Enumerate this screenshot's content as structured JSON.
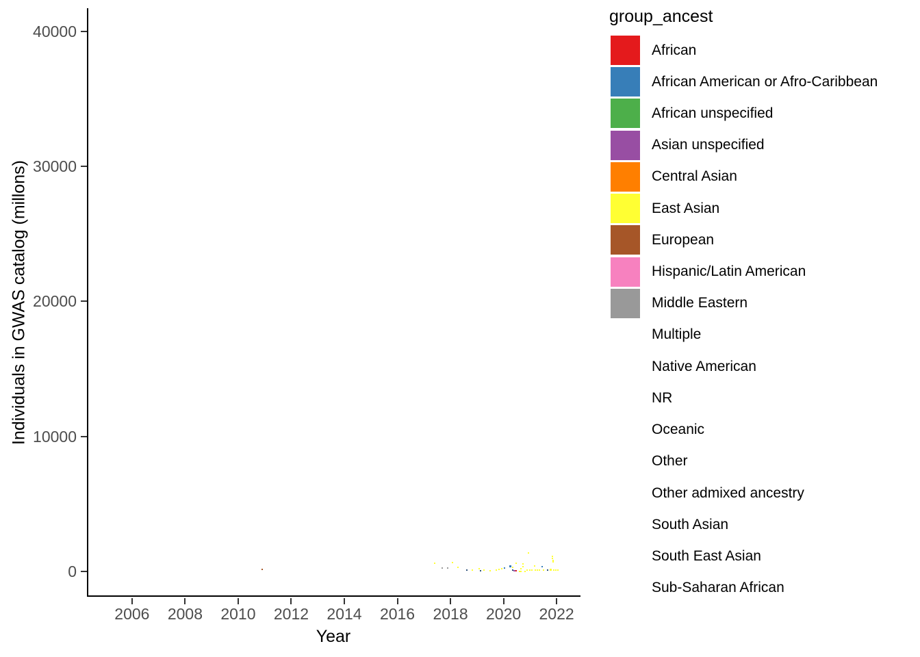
{
  "figure": {
    "background": "#FFFFFF",
    "axis_line_color": "#000000",
    "tick_mark_color": "#333333",
    "tick_text_color": "#4D4D4D",
    "title_text_color": "#000000"
  },
  "chart_data": {
    "type": "scatter",
    "title": "",
    "xlabel": "Year",
    "ylabel": "Individuals in GWAS catalog (millons)",
    "x_ticks": [
      2006,
      2008,
      2010,
      2012,
      2014,
      2016,
      2018,
      2020,
      2022
    ],
    "y_ticks": [
      0,
      10000,
      20000,
      30000,
      40000
    ],
    "xlim": [
      2004.3,
      2022.9
    ],
    "ylim": [
      -1870,
      41700
    ],
    "grid": false,
    "legend_position": "right",
    "legend_title": "group_ancest",
    "legend_items": [
      {
        "label": "African",
        "color": "#E41A1C"
      },
      {
        "label": "African American or Afro-Caribbean",
        "color": "#377EB8"
      },
      {
        "label": "African unspecified",
        "color": "#4DAF4A"
      },
      {
        "label": "Asian unspecified",
        "color": "#984EA3"
      },
      {
        "label": "Central Asian",
        "color": "#FF7F00"
      },
      {
        "label": "East Asian",
        "color": "#FFFF33"
      },
      {
        "label": "European",
        "color": "#A65628"
      },
      {
        "label": "Hispanic/Latin American",
        "color": "#F781BF"
      },
      {
        "label": "Middle Eastern",
        "color": "#999999"
      },
      {
        "label": "Multiple",
        "color": null
      },
      {
        "label": "Native American",
        "color": null
      },
      {
        "label": "NR",
        "color": null
      },
      {
        "label": "Oceanic",
        "color": null
      },
      {
        "label": "Other",
        "color": null
      },
      {
        "label": "Other admixed ancestry",
        "color": null
      },
      {
        "label": "South Asian",
        "color": null
      },
      {
        "label": "South East Asian",
        "color": null
      },
      {
        "label": "Sub-Saharan African",
        "color": null
      }
    ],
    "points": [
      {
        "year": 2010.9,
        "value": 150,
        "group": "European",
        "color": "#A65628",
        "s": 2
      },
      {
        "year": 2017.4,
        "value": 600,
        "group": "East Asian",
        "color": "#FFFF33",
        "s": 2
      },
      {
        "year": 2017.7,
        "value": 250,
        "group": "Middle Eastern",
        "color": "#999999",
        "s": 2
      },
      {
        "year": 2017.9,
        "value": 280,
        "group": "Middle Eastern",
        "color": "#999999",
        "s": 2
      },
      {
        "year": 2018.08,
        "value": 660,
        "group": "East Asian",
        "color": "#FFFF33",
        "s": 2
      },
      {
        "year": 2018.28,
        "value": 300,
        "group": "East Asian",
        "color": "#FFFF33",
        "s": 2
      },
      {
        "year": 2018.62,
        "value": 100,
        "group": "African American or Afro-Caribbean",
        "color": "#2B4F79",
        "s": 2
      },
      {
        "year": 2018.82,
        "value": 100,
        "group": "East Asian",
        "color": "#FFFF33",
        "s": 2
      },
      {
        "year": 2019.08,
        "value": 200,
        "group": "East Asian",
        "color": "#FFFF33",
        "s": 2
      },
      {
        "year": 2019.13,
        "value": 50,
        "group": "African American or Afro-Caribbean",
        "color": "#2B4F79",
        "s": 2
      },
      {
        "year": 2019.26,
        "value": 100,
        "group": "East Asian",
        "color": "#FFFF33",
        "s": 2
      },
      {
        "year": 2019.5,
        "value": 80,
        "group": "East Asian",
        "color": "#FFFF33",
        "s": 2
      },
      {
        "year": 2019.72,
        "value": 100,
        "group": "East Asian",
        "color": "#FFFF33",
        "s": 2
      },
      {
        "year": 2019.83,
        "value": 150,
        "group": "East Asian",
        "color": "#FFFF33",
        "s": 2
      },
      {
        "year": 2019.93,
        "value": 200,
        "group": "East Asian",
        "color": "#FFFF33",
        "s": 2
      },
      {
        "year": 2020.04,
        "value": 250,
        "group": "African American or Afro-Caribbean",
        "color": "#377EB8",
        "s": 2
      },
      {
        "year": 2020.25,
        "value": 400,
        "group": "African American or Afro-Caribbean",
        "color": "#377EB8",
        "s": 3
      },
      {
        "year": 2020.35,
        "value": 300,
        "group": "East Asian",
        "color": "#FFFF33",
        "s": 2
      },
      {
        "year": 2020.35,
        "value": 100,
        "group": "African American or Afro-Caribbean",
        "color": "#2B4F79",
        "s": 2
      },
      {
        "year": 2020.4,
        "value": 50,
        "group": "Asian unspecified",
        "color": "#984EA3",
        "s": 2
      },
      {
        "year": 2020.45,
        "value": 60,
        "group": "Asian unspecified",
        "color": "#984EA3",
        "s": 2
      },
      {
        "year": 2020.48,
        "value": 50,
        "group": "African",
        "color": "#E41A1C",
        "s": 2
      },
      {
        "year": 2020.48,
        "value": 600,
        "group": "East Asian",
        "color": "#FFFF33",
        "s": 2
      },
      {
        "year": 2020.6,
        "value": 0,
        "group": "East Asian",
        "color": "#FFFF33",
        "s": 2
      },
      {
        "year": 2020.65,
        "value": 0,
        "group": "East Asian",
        "color": "#FFFF33",
        "s": 2
      },
      {
        "year": 2020.65,
        "value": 200,
        "group": "East Asian",
        "color": "#FFFF33",
        "s": 2
      },
      {
        "year": 2020.73,
        "value": 550,
        "group": "East Asian",
        "color": "#FFFF33",
        "s": 2
      },
      {
        "year": 2020.73,
        "value": 350,
        "group": "East Asian",
        "color": "#FFFF33",
        "s": 2
      },
      {
        "year": 2020.8,
        "value": 0,
        "group": "East Asian",
        "color": "#FFFF33",
        "s": 2
      },
      {
        "year": 2020.9,
        "value": 100,
        "group": "East Asian",
        "color": "#FFFF33",
        "s": 2
      },
      {
        "year": 2020.93,
        "value": 1380,
        "group": "East Asian",
        "color": "#FFFF33",
        "s": 2
      },
      {
        "year": 2020.98,
        "value": 100,
        "group": "East Asian",
        "color": "#FFFF33",
        "s": 2
      },
      {
        "year": 2021.06,
        "value": 100,
        "group": "East Asian",
        "color": "#FFFF33",
        "s": 2
      },
      {
        "year": 2021.16,
        "value": 400,
        "group": "East Asian",
        "color": "#FFFF33",
        "s": 2
      },
      {
        "year": 2021.19,
        "value": 100,
        "group": "East Asian",
        "color": "#FFFF33",
        "s": 2
      },
      {
        "year": 2021.27,
        "value": 100,
        "group": "East Asian",
        "color": "#FFFF33",
        "s": 2
      },
      {
        "year": 2021.35,
        "value": 100,
        "group": "East Asian",
        "color": "#FFFF33",
        "s": 2
      },
      {
        "year": 2021.45,
        "value": 350,
        "group": "African American or Afro-Caribbean",
        "color": "#377EB8",
        "s": 2
      },
      {
        "year": 2021.5,
        "value": 100,
        "group": "East Asian",
        "color": "#FFFF33",
        "s": 2
      },
      {
        "year": 2021.66,
        "value": 100,
        "group": "African American or Afro-Caribbean",
        "color": "#2B4F79",
        "s": 2
      },
      {
        "year": 2021.77,
        "value": 150,
        "group": "East Asian",
        "color": "#FFFF33",
        "s": 3
      },
      {
        "year": 2021.85,
        "value": 1100,
        "group": "East Asian",
        "color": "#FFFF33",
        "s": 2
      },
      {
        "year": 2021.85,
        "value": 950,
        "group": "East Asian",
        "color": "#FFFF33",
        "s": 2
      },
      {
        "year": 2021.87,
        "value": 800,
        "group": "East Asian",
        "color": "#FFFF33",
        "s": 2
      },
      {
        "year": 2021.87,
        "value": 700,
        "group": "East Asian",
        "color": "#FFFF33",
        "s": 2
      },
      {
        "year": 2021.9,
        "value": 100,
        "group": "East Asian",
        "color": "#FFFF33",
        "s": 2
      },
      {
        "year": 2021.98,
        "value": 100,
        "group": "East Asian",
        "color": "#FFFF33",
        "s": 2
      },
      {
        "year": 2022.06,
        "value": 100,
        "group": "East Asian",
        "color": "#FFFF33",
        "s": 2
      }
    ]
  }
}
